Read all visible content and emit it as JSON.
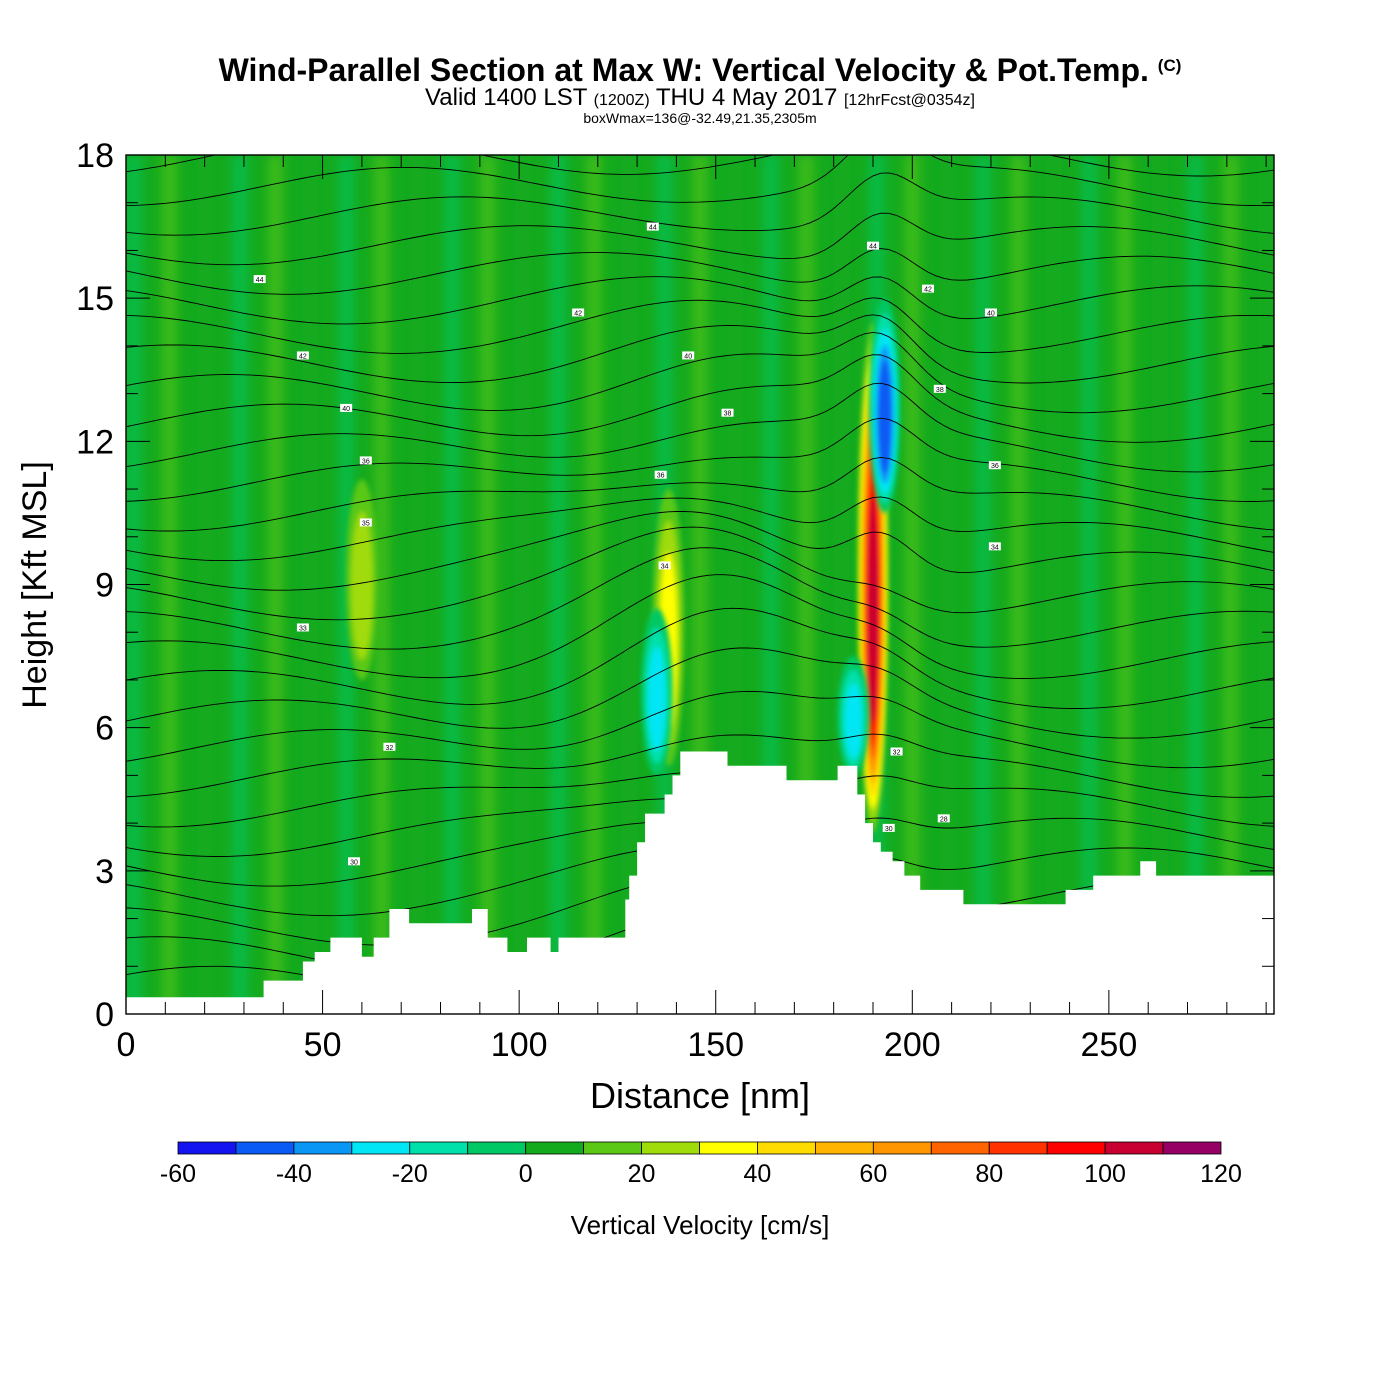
{
  "header": {
    "title": "Wind-Parallel Section at Max W: Vertical Velocity & Pot.Temp.",
    "copyright": "(C)",
    "valid_prefix": "Valid 1400 LST",
    "valid_utc": "(1200Z)",
    "valid_date": "THU 4 May 2017",
    "forecast": "[12hrFcst@0354z]",
    "box_info": "boxWmax=136@-32.49,21.35,2305m"
  },
  "chart_data": {
    "type": "heatmap",
    "title": "Wind-Parallel Section at Max W: Vertical Velocity & Pot.Temp.",
    "xlabel": "Distance [nm]",
    "ylabel": "Height [Kft MSL]",
    "xlim": [
      0,
      292
    ],
    "ylim": [
      0,
      18
    ],
    "x_ticks": [
      0,
      50,
      100,
      150,
      200,
      250
    ],
    "y_ticks": [
      0,
      3,
      6,
      9,
      12,
      15,
      18
    ],
    "colorbar": {
      "label": "Vertical Velocity [cm/s]",
      "ticks": [
        -60,
        -40,
        -20,
        0,
        20,
        40,
        60,
        80,
        100,
        120
      ],
      "bounds": [
        -60,
        -50,
        -40,
        -30,
        -20,
        -10,
        0,
        10,
        20,
        30,
        40,
        50,
        60,
        70,
        80,
        90,
        100,
        110,
        120
      ],
      "colors": [
        "#1414f0",
        "#0a5af5",
        "#0a96f5",
        "#00e6f5",
        "#00e0aa",
        "#00c864",
        "#14aa1e",
        "#5ac814",
        "#a0dc0a",
        "#ffff00",
        "#ffdc00",
        "#ffb400",
        "#ff9600",
        "#ff6400",
        "#ff3200",
        "#ff0000",
        "#c80032",
        "#960064"
      ]
    },
    "terrain": [
      [
        0,
        0.35
      ],
      [
        10,
        0.35
      ],
      [
        20,
        0.35
      ],
      [
        30,
        0.35
      ],
      [
        35,
        0.7
      ],
      [
        40,
        0.7
      ],
      [
        45,
        1.1
      ],
      [
        48,
        1.3
      ],
      [
        52,
        1.6
      ],
      [
        56,
        1.6
      ],
      [
        60,
        1.2
      ],
      [
        63,
        1.6
      ],
      [
        67,
        2.2
      ],
      [
        70,
        2.2
      ],
      [
        72,
        1.9
      ],
      [
        85,
        1.9
      ],
      [
        88,
        2.2
      ],
      [
        92,
        1.6
      ],
      [
        95,
        1.6
      ],
      [
        97,
        1.3
      ],
      [
        100,
        1.3
      ],
      [
        102,
        1.6
      ],
      [
        105,
        1.6
      ],
      [
        108,
        1.3
      ],
      [
        110,
        1.6
      ],
      [
        120,
        1.6
      ],
      [
        124,
        1.6
      ],
      [
        127,
        2.4
      ],
      [
        128,
        2.9
      ],
      [
        130,
        3.6
      ],
      [
        132,
        4.2
      ],
      [
        135,
        4.2
      ],
      [
        137,
        4.6
      ],
      [
        139,
        5.0
      ],
      [
        141,
        5.5
      ],
      [
        152,
        5.5
      ],
      [
        153,
        5.2
      ],
      [
        166,
        5.2
      ],
      [
        168,
        4.9
      ],
      [
        179,
        4.9
      ],
      [
        181,
        5.2
      ],
      [
        184,
        5.2
      ],
      [
        186,
        4.6
      ],
      [
        188,
        4.0
      ],
      [
        190,
        3.6
      ],
      [
        192,
        3.4
      ],
      [
        195,
        3.2
      ],
      [
        198,
        2.9
      ],
      [
        202,
        2.6
      ],
      [
        211,
        2.6
      ],
      [
        213,
        2.3
      ],
      [
        235,
        2.3
      ],
      [
        239,
        2.6
      ],
      [
        246,
        2.9
      ],
      [
        256,
        2.9
      ],
      [
        258,
        3.2
      ],
      [
        261,
        3.2
      ],
      [
        262,
        2.9
      ],
      [
        292,
        2.9
      ]
    ],
    "updrafts": [
      {
        "x": 190,
        "zbot": 3.8,
        "ztop": 14.5,
        "peak": 110
      },
      {
        "x": 138,
        "zbot": 5.2,
        "ztop": 11.0,
        "peak": 40
      },
      {
        "x": 60,
        "zbot": 7.0,
        "ztop": 11.2,
        "peak": 25
      }
    ],
    "downdrafts": [
      {
        "x": 193,
        "zbot": 10.5,
        "ztop": 15.0,
        "peak": -50
      },
      {
        "x": 135,
        "zbot": 5.0,
        "ztop": 8.5,
        "peak": -30
      },
      {
        "x": 185,
        "zbot": 5.0,
        "ztop": 7.5,
        "peak": -25
      }
    ],
    "theta_labels": [
      {
        "x": 34,
        "y": 15.4,
        "text": "44"
      },
      {
        "x": 134,
        "y": 16.5,
        "text": "44"
      },
      {
        "x": 190,
        "y": 16.1,
        "text": "44"
      },
      {
        "x": 45,
        "y": 13.8,
        "text": "42"
      },
      {
        "x": 115,
        "y": 14.7,
        "text": "42"
      },
      {
        "x": 204,
        "y": 15.2,
        "text": "42"
      },
      {
        "x": 56,
        "y": 12.7,
        "text": "40"
      },
      {
        "x": 143,
        "y": 13.8,
        "text": "40"
      },
      {
        "x": 220,
        "y": 14.7,
        "text": "40"
      },
      {
        "x": 153,
        "y": 12.6,
        "text": "38"
      },
      {
        "x": 207,
        "y": 13.1,
        "text": "38"
      },
      {
        "x": 61,
        "y": 11.6,
        "text": "36"
      },
      {
        "x": 136,
        "y": 11.3,
        "text": "36"
      },
      {
        "x": 221,
        "y": 11.5,
        "text": "36"
      },
      {
        "x": 61,
        "y": 10.3,
        "text": "35"
      },
      {
        "x": 137,
        "y": 9.4,
        "text": "34"
      },
      {
        "x": 221,
        "y": 9.8,
        "text": "34"
      },
      {
        "x": 45,
        "y": 8.1,
        "text": "33"
      },
      {
        "x": 67,
        "y": 5.6,
        "text": "32"
      },
      {
        "x": 196,
        "y": 5.5,
        "text": "32"
      },
      {
        "x": 58,
        "y": 3.2,
        "text": "30"
      },
      {
        "x": 208,
        "y": 4.1,
        "text": "28"
      },
      {
        "x": 194,
        "y": 3.9,
        "text": "30"
      }
    ]
  },
  "colorbar_label": "Vertical Velocity [cm/s]"
}
